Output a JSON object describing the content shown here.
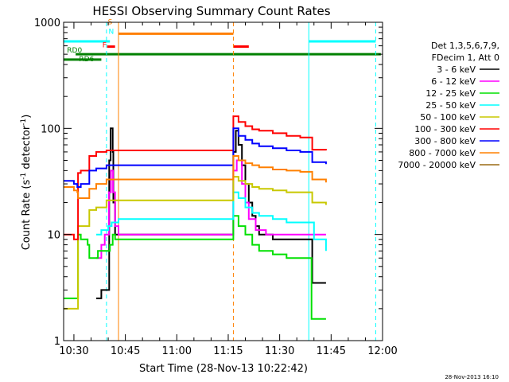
{
  "chart_data": {
    "type": "line",
    "title": "HESSI Observing Summary Count Rates",
    "xlabel": "Start Time (28-Nov-13 10:22:42)",
    "ylabel": "Count Rate (s^-1 detector^-1)",
    "ylabel_main": "Count Rate (s",
    "ylabel_sup1": "-1",
    "ylabel_mid": " detector",
    "ylabel_sup2": "-1",
    "ylabel_end": ")",
    "x_unit": "minutes of day",
    "xlim": [
      627,
      720
    ],
    "ylim": [
      1,
      1000
    ],
    "y_scale": "log",
    "x_ticks": [
      {
        "t": 630,
        "label": "10:30"
      },
      {
        "t": 645,
        "label": "10:45"
      },
      {
        "t": 660,
        "label": "11:00"
      },
      {
        "t": 675,
        "label": "11:15"
      },
      {
        "t": 690,
        "label": "11:30"
      },
      {
        "t": 705,
        "label": "11:45"
      },
      {
        "t": 720,
        "label": "12:00"
      }
    ],
    "y_ticks": [
      {
        "v": 1,
        "label": "1"
      },
      {
        "v": 10,
        "label": "10"
      },
      {
        "v": 100,
        "label": "100"
      },
      {
        "v": 1000,
        "label": "1000"
      }
    ],
    "legend_header": [
      "Det 1,3,5,6,7,9,",
      "FDecim 1, Att 0"
    ],
    "legend_placement": "right",
    "series": [
      {
        "name": "3 - 6 keV",
        "color": "#000000",
        "points": [
          [
            636.5,
            2.5
          ],
          [
            638,
            3
          ],
          [
            639,
            3
          ],
          [
            640.3,
            50
          ],
          [
            640.7,
            100
          ],
          [
            641.3,
            60
          ],
          [
            641.5,
            20
          ],
          [
            642,
            10
          ],
          [
            643,
            10
          ],
          [
            676.5,
            60
          ],
          [
            677.2,
            95
          ],
          [
            678,
            70
          ],
          [
            679,
            45
          ],
          [
            680,
            30
          ],
          [
            681,
            20
          ],
          [
            682,
            15
          ],
          [
            683,
            12
          ],
          [
            684,
            10
          ],
          [
            688,
            9
          ],
          [
            692,
            9
          ],
          [
            696,
            9
          ],
          [
            699,
            9
          ],
          [
            699.5,
            3.5
          ],
          [
            703.5,
            3.5
          ]
        ]
      },
      {
        "name": "6 - 12 keV",
        "color": "#ff00ff",
        "points": [
          [
            636.5,
            6
          ],
          [
            638,
            8
          ],
          [
            639,
            10
          ],
          [
            640.2,
            25
          ],
          [
            640.8,
            40
          ],
          [
            641.4,
            25
          ],
          [
            642,
            12
          ],
          [
            643,
            10
          ],
          [
            676.5,
            40
          ],
          [
            677.5,
            50
          ],
          [
            679,
            30
          ],
          [
            680,
            20
          ],
          [
            681,
            14
          ],
          [
            683,
            11
          ],
          [
            686,
            10
          ],
          [
            690,
            10
          ],
          [
            694,
            10
          ],
          [
            698,
            10
          ],
          [
            699,
            10
          ],
          [
            703.5,
            10
          ]
        ]
      },
      {
        "name": "12 - 25 keV",
        "color": "#00e000",
        "points": [
          [
            627,
            2.5
          ],
          [
            630,
            2.5
          ],
          [
            631,
            2.5
          ],
          [
            631.2,
            10
          ],
          [
            632,
            9
          ],
          [
            634,
            8
          ],
          [
            634.5,
            6
          ],
          [
            636,
            6
          ],
          [
            637,
            7
          ],
          [
            639,
            7
          ],
          [
            640.5,
            8
          ],
          [
            641.3,
            10
          ],
          [
            642,
            9
          ],
          [
            643,
            9
          ],
          [
            676.5,
            15
          ],
          [
            678,
            12
          ],
          [
            680,
            10
          ],
          [
            682,
            8
          ],
          [
            684,
            7
          ],
          [
            688,
            6.5
          ],
          [
            692,
            6
          ],
          [
            696,
            6
          ],
          [
            698,
            6
          ],
          [
            699,
            6
          ],
          [
            699.3,
            1.6
          ],
          [
            703.5,
            1.6
          ]
        ]
      },
      {
        "name": "25 - 50 keV",
        "color": "#00ffff",
        "points": [
          [
            636.5,
            10
          ],
          [
            638,
            11
          ],
          [
            639,
            11
          ],
          [
            640,
            12
          ],
          [
            641,
            13
          ],
          [
            642,
            13
          ],
          [
            643,
            14
          ],
          [
            676.5,
            25
          ],
          [
            678,
            22
          ],
          [
            680,
            18
          ],
          [
            682,
            16
          ],
          [
            684,
            15
          ],
          [
            688,
            14
          ],
          [
            692,
            13
          ],
          [
            696,
            13
          ],
          [
            698,
            13
          ],
          [
            699,
            13
          ],
          [
            700,
            9
          ],
          [
            703.5,
            7
          ]
        ]
      },
      {
        "name": "50 - 100 keV",
        "color": "#c8c800",
        "points": [
          [
            627,
            2
          ],
          [
            630,
            2
          ],
          [
            631,
            2
          ],
          [
            631.2,
            12
          ],
          [
            632,
            12
          ],
          [
            634,
            12
          ],
          [
            634.5,
            17
          ],
          [
            636,
            17
          ],
          [
            636.5,
            18
          ],
          [
            639,
            18
          ],
          [
            639.5,
            21
          ],
          [
            643,
            21
          ],
          [
            676.5,
            35
          ],
          [
            678,
            32
          ],
          [
            680,
            30
          ],
          [
            682,
            28
          ],
          [
            684,
            27
          ],
          [
            688,
            26
          ],
          [
            692,
            25
          ],
          [
            696,
            25
          ],
          [
            698,
            25
          ],
          [
            699,
            25
          ],
          [
            699.5,
            20
          ],
          [
            703.5,
            19
          ]
        ]
      },
      {
        "name": "100 - 300 keV",
        "color": "#ff0000",
        "points": [
          [
            627,
            10
          ],
          [
            630,
            9
          ],
          [
            631,
            9
          ],
          [
            631.2,
            38
          ],
          [
            632,
            40
          ],
          [
            634,
            40
          ],
          [
            634.5,
            55
          ],
          [
            636,
            55
          ],
          [
            636.5,
            60
          ],
          [
            639,
            60
          ],
          [
            639.5,
            62
          ],
          [
            643,
            62
          ],
          [
            676.5,
            130
          ],
          [
            678,
            115
          ],
          [
            680,
            105
          ],
          [
            682,
            98
          ],
          [
            684,
            95
          ],
          [
            688,
            90
          ],
          [
            692,
            85
          ],
          [
            696,
            82
          ],
          [
            698,
            82
          ],
          [
            699,
            82
          ],
          [
            699.5,
            63
          ],
          [
            703.5,
            62
          ]
        ]
      },
      {
        "name": "300 - 800 keV",
        "color": "#0000ff",
        "points": [
          [
            627,
            32
          ],
          [
            630,
            30
          ],
          [
            631,
            28
          ],
          [
            631.2,
            28
          ],
          [
            632,
            30
          ],
          [
            634,
            30
          ],
          [
            634.5,
            40
          ],
          [
            636,
            40
          ],
          [
            636.5,
            42
          ],
          [
            639,
            42
          ],
          [
            639.5,
            45
          ],
          [
            643,
            45
          ],
          [
            676.5,
            100
          ],
          [
            678,
            85
          ],
          [
            680,
            78
          ],
          [
            682,
            72
          ],
          [
            684,
            68
          ],
          [
            688,
            65
          ],
          [
            692,
            62
          ],
          [
            696,
            60
          ],
          [
            698,
            60
          ],
          [
            699,
            60
          ],
          [
            699.5,
            48
          ],
          [
            703.5,
            46
          ]
        ]
      },
      {
        "name": "800 - 7000 keV",
        "color": "#ff8000",
        "points": [
          [
            627,
            28
          ],
          [
            630,
            26
          ],
          [
            631,
            25
          ],
          [
            631.2,
            22
          ],
          [
            632,
            22
          ],
          [
            634,
            22
          ],
          [
            634.5,
            27
          ],
          [
            636,
            27
          ],
          [
            636.5,
            30
          ],
          [
            639,
            30
          ],
          [
            639.5,
            33
          ],
          [
            643,
            33
          ],
          [
            676.5,
            55
          ],
          [
            678,
            50
          ],
          [
            680,
            47
          ],
          [
            682,
            45
          ],
          [
            684,
            43
          ],
          [
            688,
            41
          ],
          [
            692,
            40
          ],
          [
            696,
            39
          ],
          [
            698,
            39
          ],
          [
            699,
            39
          ],
          [
            699.5,
            33
          ],
          [
            703.5,
            31
          ]
        ]
      },
      {
        "name": "7000 - 20000 keV",
        "color": "#9a6a14",
        "points": []
      }
    ],
    "flag_lines": [
      {
        "t0": 627,
        "t1": 640.5,
        "value": 660,
        "color": "#00ffff"
      },
      {
        "t0": 643,
        "t1": 676.5,
        "value": 780,
        "color": "#ff8000"
      },
      {
        "t0": 698.5,
        "t1": 718,
        "value": 660,
        "color": "#00ffff"
      },
      {
        "t0": 639.7,
        "t1": 642,
        "value": 590,
        "color": "#ff0000"
      },
      {
        "t0": 676.5,
        "t1": 681,
        "value": 590,
        "color": "#ff0000"
      },
      {
        "t0": 627,
        "t1": 638,
        "value": 445,
        "color": "#008000"
      },
      {
        "t0": 630.5,
        "t1": 719.5,
        "value": 500,
        "color": "#008000"
      }
    ],
    "flag_labels": [
      {
        "text": "RD0",
        "t": 628,
        "value": 520,
        "color": "#008000"
      },
      {
        "text": "RD6",
        "t": 631.5,
        "value": 430,
        "color": "#008000"
      },
      {
        "text": "F",
        "t": 638.3,
        "value": 580,
        "color": "#ff0000"
      },
      {
        "text": "S",
        "t": 639.9,
        "value": 960,
        "color": "#ff8000"
      },
      {
        "text": "N",
        "t": 640.1,
        "value": 780,
        "color": "#00ffff"
      }
    ],
    "vlines": [
      {
        "t": 639.5,
        "color": "#00ffff",
        "style": "dashed"
      },
      {
        "t": 643,
        "color": "#ff8000",
        "style": "solid"
      },
      {
        "t": 676.5,
        "color": "#ff8000",
        "style": "dashed"
      },
      {
        "t": 698.5,
        "color": "#00ffff",
        "style": "solid"
      },
      {
        "t": 718,
        "color": "#00ffff",
        "style": "dashed"
      }
    ],
    "footer_date": "28-Nov-2013 16:10"
  }
}
